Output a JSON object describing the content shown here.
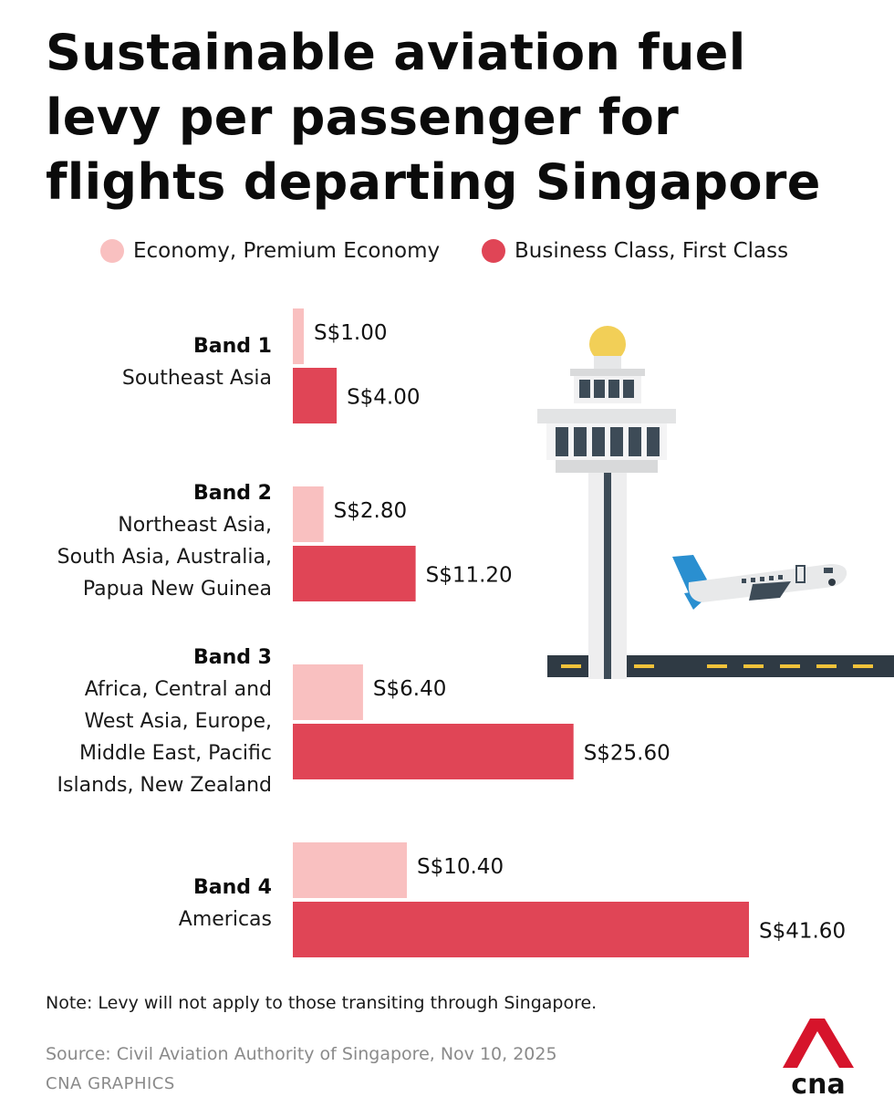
{
  "title": "Sustainable aviation fuel levy per passenger for flights departing Singapore",
  "legend": [
    {
      "label": "Economy, Premium Economy",
      "color": "#f9c0c0"
    },
    {
      "label": "Business Class, First Class",
      "color": "#e04556"
    }
  ],
  "bands": [
    {
      "name": "Band 1",
      "regions": [
        "Southeast Asia"
      ]
    },
    {
      "name": "Band 2",
      "regions": [
        "Northeast Asia,",
        "South Asia, Australia,",
        "Papua New Guinea"
      ]
    },
    {
      "name": "Band 3",
      "regions": [
        "Africa, Central and",
        "West Asia, Europe,",
        "Middle East, Pacific",
        "Islands, New Zealand"
      ]
    },
    {
      "name": "Band 4",
      "regions": [
        "Americas"
      ]
    }
  ],
  "chart_data": {
    "type": "bar",
    "orientation": "horizontal",
    "title": "Sustainable aviation fuel levy per passenger for flights departing Singapore",
    "categories": [
      "Band 1",
      "Band 2",
      "Band 3",
      "Band 4"
    ],
    "series": [
      {
        "name": "Economy, Premium Economy",
        "values": [
          1.0,
          2.8,
          6.4,
          10.4
        ],
        "labels": [
          "S$1.00",
          "S$2.80",
          "S$6.40",
          "S$10.40"
        ],
        "color": "#f9c0c0"
      },
      {
        "name": "Business Class, First Class",
        "values": [
          4.0,
          11.2,
          25.6,
          41.6
        ],
        "labels": [
          "S$4.00",
          "S$11.20",
          "S$25.60",
          "S$41.60"
        ],
        "color": "#e04556"
      }
    ],
    "xlim": [
      0,
      41.6
    ],
    "grid": false,
    "legend_position": "top"
  },
  "note": "Note: Levy will not apply to those transiting through Singapore.",
  "source": "Source: Civil Aviation Authority of Singapore, Nov 10, 2025",
  "credit": "CNA GRAPHICS",
  "logo_text": "cna"
}
